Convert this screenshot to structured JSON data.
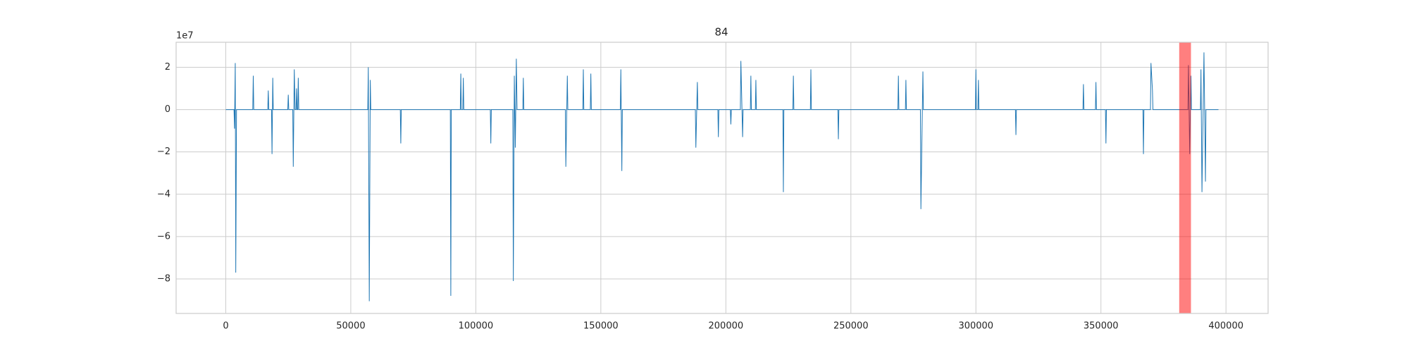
{
  "chart_data": {
    "type": "line",
    "title": "84",
    "y_offset_label": "1e7",
    "grid": true,
    "xlim": [
      -19850,
      416850
    ],
    "ylim": [
      -9.63,
      3.18
    ],
    "xticks": [
      0,
      50000,
      100000,
      150000,
      200000,
      250000,
      300000,
      350000,
      400000
    ],
    "yticks": [
      {
        "value": -8,
        "label": "−8"
      },
      {
        "value": -6,
        "label": "−6"
      },
      {
        "value": -4,
        "label": "−4"
      },
      {
        "value": -2,
        "label": "−2"
      },
      0,
      2
    ],
    "span": [
      381300,
      386000
    ],
    "span_color": "#ff0000",
    "series": [
      {
        "color": "#1f77b4",
        "x": [
          0,
          3300,
          3500,
          3800,
          4000,
          4300,
          10800,
          11000,
          11200,
          16800,
          17000,
          17200,
          18300,
          18500,
          18800,
          19000,
          24800,
          25000,
          25200,
          26800,
          27000,
          27400,
          27700,
          28100,
          28300,
          28500,
          28800,
          29000,
          29200,
          56800,
          57000,
          57400,
          57800,
          58000,
          69800,
          70000,
          70200,
          89800,
          90000,
          90200,
          93800,
          94000,
          94200,
          94800,
          95000,
          95200,
          105800,
          106000,
          106200,
          114800,
          115000,
          115400,
          115800,
          116200,
          116500,
          118800,
          119000,
          119200,
          135800,
          136000,
          136600,
          136800,
          142800,
          143000,
          143200,
          145800,
          146000,
          146200,
          157800,
          158000,
          158400,
          158600,
          187800,
          188000,
          188600,
          188800,
          196800,
          197000,
          197200,
          201800,
          202000,
          202200,
          205800,
          206000,
          206700,
          206900,
          209800,
          210000,
          210200,
          211800,
          212000,
          212200,
          222800,
          223000,
          223200,
          226800,
          227000,
          227200,
          233800,
          234000,
          234200,
          244800,
          245000,
          245200,
          268800,
          269000,
          269200,
          271800,
          272000,
          272200,
          277800,
          278000,
          278800,
          279000,
          299800,
          300000,
          300200,
          300800,
          301000,
          301200,
          315800,
          316000,
          316200,
          342800,
          343000,
          343200,
          347800,
          348000,
          348200,
          351800,
          352000,
          352200,
          366800,
          367000,
          367200,
          369800,
          370000,
          370600,
          370800,
          384800,
          385000,
          385500,
          386000,
          386200,
          389800,
          390000,
          390400,
          391200,
          391800,
          392000,
          397000
        ],
        "values": [
          0,
          0,
          -0.9,
          2.2,
          -7.7,
          0,
          0,
          1.6,
          0,
          0,
          0.9,
          0,
          0,
          -2.1,
          1.5,
          0,
          0,
          0.7,
          0,
          0,
          -2.7,
          1.9,
          0,
          0,
          1.0,
          0,
          0,
          1.5,
          0,
          0,
          2.0,
          -9.05,
          1.4,
          0,
          0,
          -1.6,
          0,
          0,
          -8.8,
          0,
          0,
          1.7,
          0,
          0,
          1.5,
          0,
          0,
          -1.6,
          0,
          0,
          -8.1,
          1.6,
          -1.8,
          2.4,
          0,
          0,
          1.5,
          0,
          0,
          -2.7,
          1.6,
          0,
          0,
          1.9,
          0,
          0,
          1.7,
          0,
          0,
          1.9,
          -2.9,
          0,
          0,
          -1.8,
          1.3,
          0,
          0,
          -1.3,
          0,
          0,
          -0.7,
          0,
          0,
          2.3,
          -1.3,
          0,
          0,
          1.6,
          0,
          0,
          1.4,
          0,
          0,
          -3.9,
          0,
          0,
          1.6,
          0,
          0,
          1.9,
          0,
          0,
          -1.4,
          0,
          0,
          1.6,
          0,
          0,
          1.4,
          0,
          0,
          -4.7,
          1.8,
          0,
          0,
          1.9,
          0,
          0,
          1.4,
          0,
          0,
          -1.2,
          0,
          0,
          1.2,
          0,
          0,
          1.3,
          0,
          0,
          -1.6,
          0,
          0,
          -2.1,
          0,
          0,
          2.2,
          0.9,
          0,
          0,
          2.1,
          -2.1,
          1.6,
          0,
          0,
          1.9,
          -3.9,
          2.7,
          -3.4,
          0,
          0
        ]
      }
    ]
  }
}
